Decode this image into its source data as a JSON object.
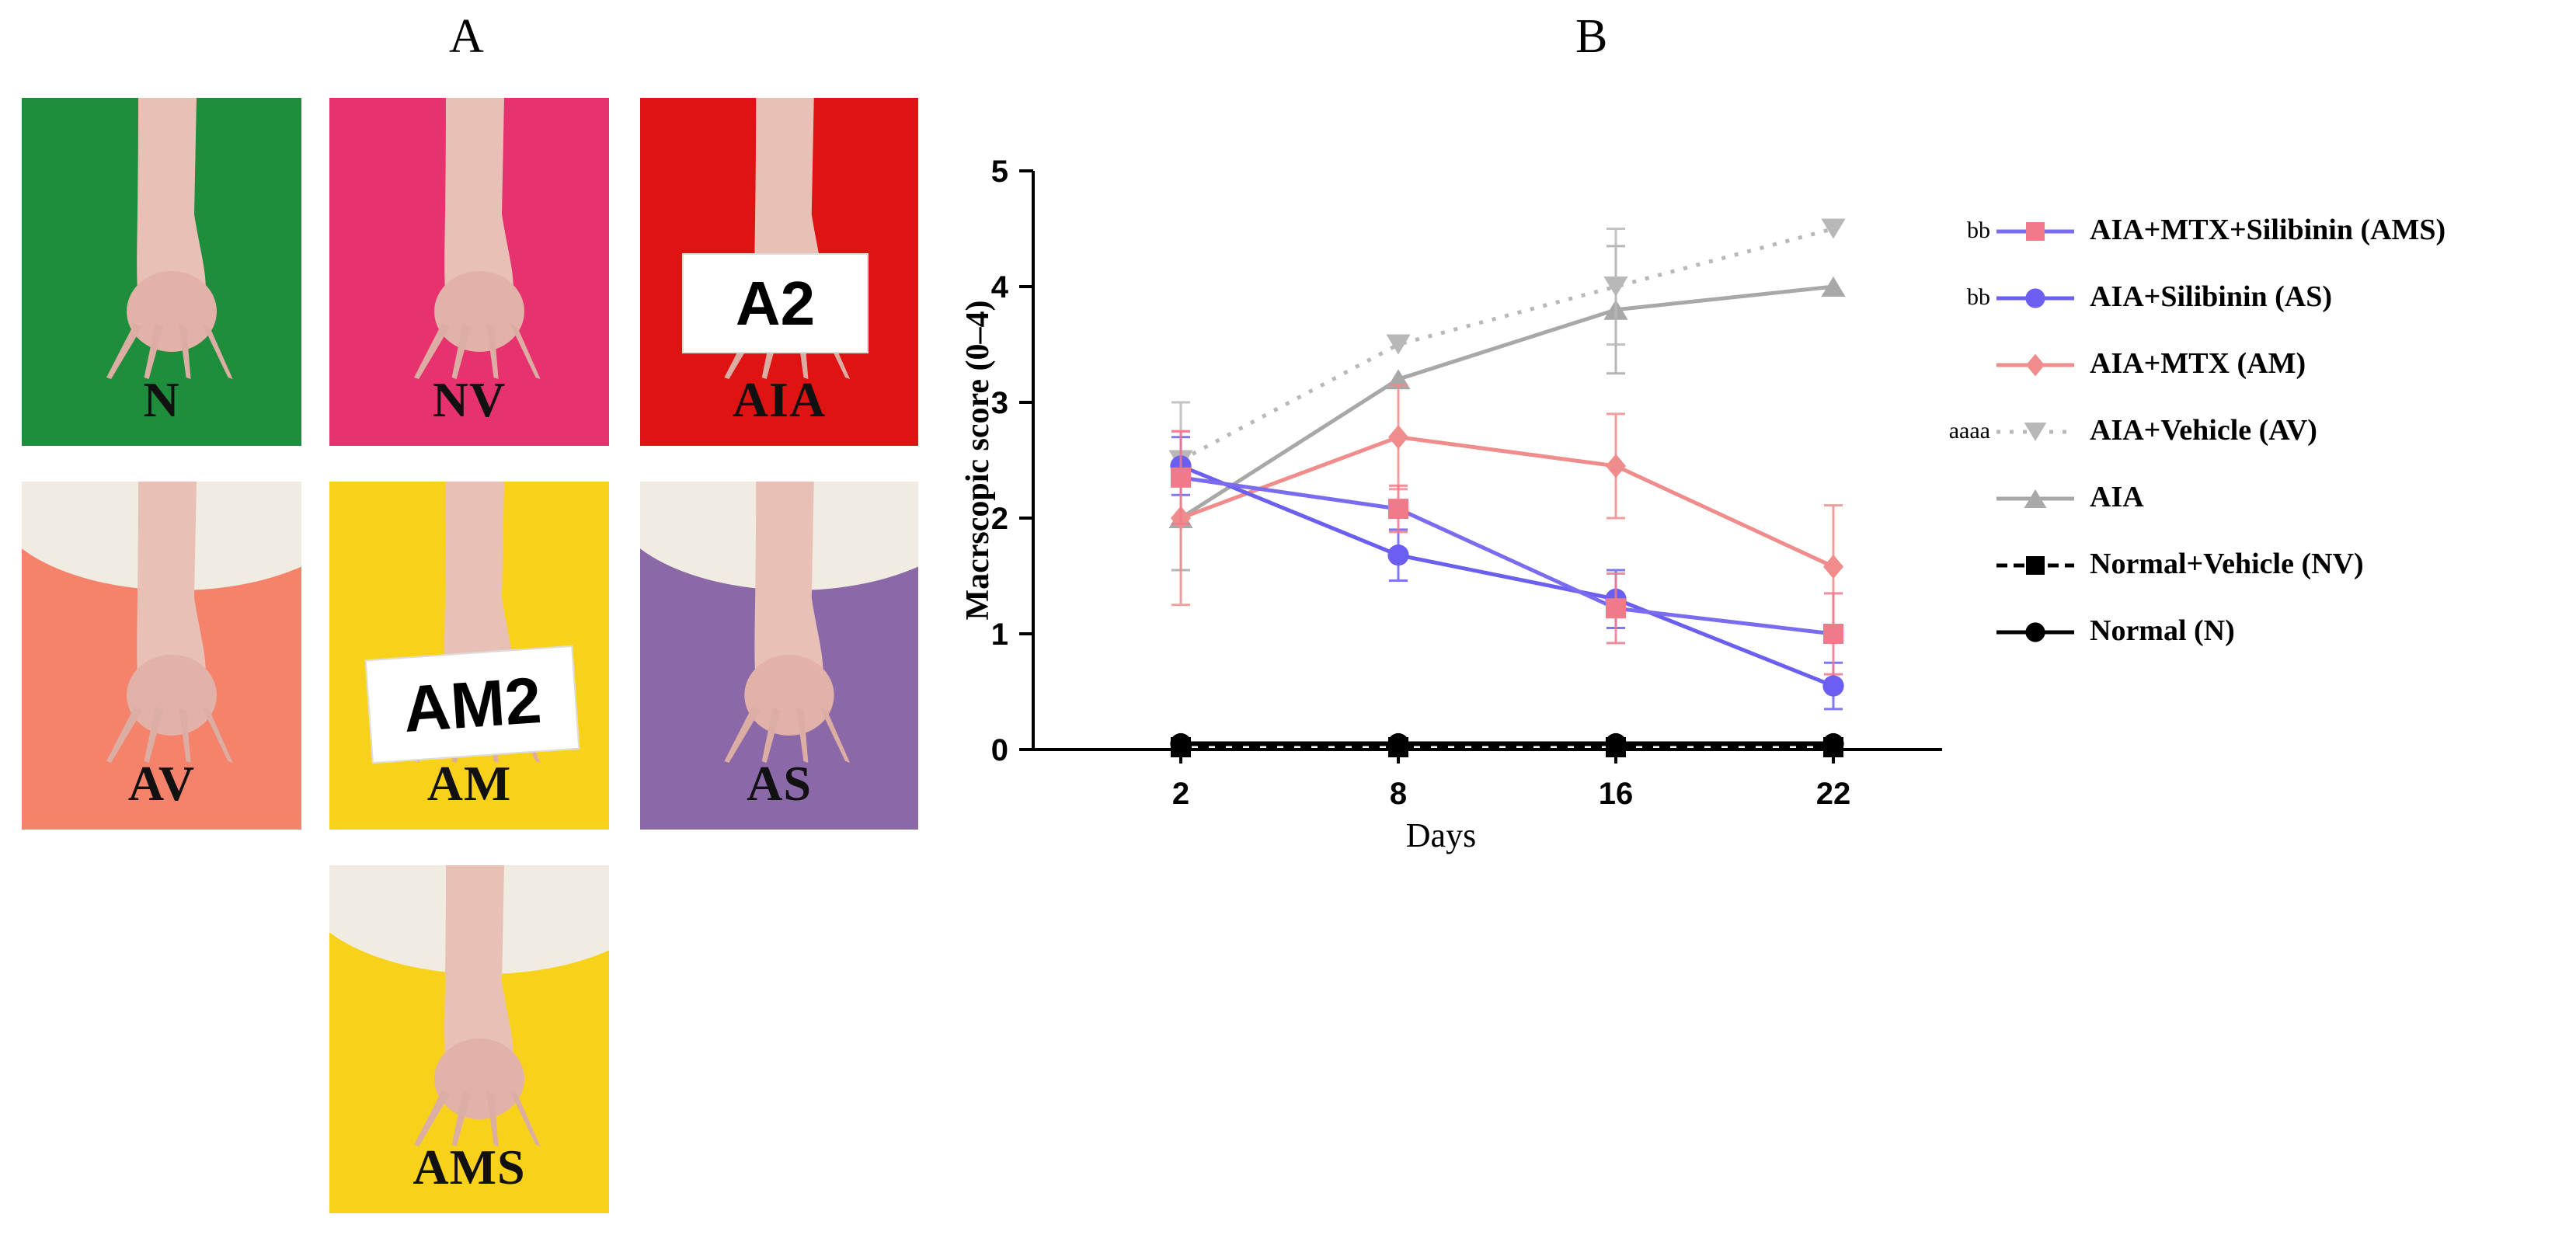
{
  "figure": {
    "panel_a_label": "A",
    "panel_b_label": "B"
  },
  "photos": [
    {
      "label": "N",
      "bg": "#1f8e3c"
    },
    {
      "label": "NV",
      "bg": "#e8316f"
    },
    {
      "label": "AIA",
      "bg": "#e01313",
      "card_text": "A2"
    },
    {
      "label": "AV",
      "bg": "#f5826a"
    },
    {
      "label": "AM",
      "bg": "#f8d21a",
      "card_text": "AM2"
    },
    {
      "label": "AS",
      "bg": "#8b68a8"
    },
    {
      "label": "AMS",
      "bg": "#f8d21a"
    }
  ],
  "chart_data": {
    "type": "line",
    "xlabel": "Days",
    "ylabel": "Macrscopic score (0–4)",
    "categories": [
      "2",
      "8",
      "16",
      "22"
    ],
    "ylim": [
      0,
      5
    ],
    "yticks": [
      "0",
      "1",
      "2",
      "3",
      "4",
      "5"
    ],
    "grid": false,
    "legend_position": "right",
    "series": [
      {
        "name": "AIA+MTX+Silibinin (AMS)",
        "prefix": "bb",
        "color": "#7a6cf0",
        "marker_color": "#f07a8a",
        "marker": "square",
        "dash": "solid",
        "values": [
          2.35,
          2.08,
          1.22,
          1.0
        ],
        "err": [
          0.4,
          0.2,
          0.3,
          0.35
        ]
      },
      {
        "name": "AIA+Silibinin (AS)",
        "prefix": "bb",
        "color": "#6a5ff0",
        "marker_color": "#6a5ff0",
        "marker": "circle",
        "dash": "solid",
        "values": [
          2.45,
          1.68,
          1.3,
          0.55
        ],
        "err": [
          0.25,
          0.22,
          0.25,
          0.2
        ]
      },
      {
        "name": "AIA+MTX (AM)",
        "prefix": "",
        "color": "#f08c8c",
        "marker_color": "#f08c8c",
        "marker": "diamond",
        "dash": "solid",
        "values": [
          2.0,
          2.7,
          2.45,
          1.58
        ],
        "err": [
          0.75,
          0.45,
          0.45,
          0.53
        ]
      },
      {
        "name": "AIA+Vehicle (AV)",
        "prefix": "aaaa",
        "color": "#b8b8b8",
        "marker_color": "#b8b8b8",
        "marker": "triangle-down",
        "dash": "dot",
        "values": [
          2.5,
          3.5,
          4.0,
          4.5
        ],
        "err": [
          0.5,
          0.0,
          0.5,
          0.0
        ]
      },
      {
        "name": "AIA",
        "prefix": "",
        "color": "#a8a8a8",
        "marker_color": "#a8a8a8",
        "marker": "triangle-up",
        "dash": "solid",
        "values": [
          2.0,
          3.2,
          3.8,
          4.0
        ],
        "err": [
          0.45,
          0.0,
          0.55,
          0.0
        ]
      },
      {
        "name": "Normal+Vehicle (NV)",
        "prefix": "",
        "color": "#000000",
        "marker_color": "#000000",
        "marker": "square",
        "dash": "dash",
        "values": [
          0.02,
          0.02,
          0.02,
          0.02
        ],
        "err": [
          0,
          0,
          0,
          0
        ]
      },
      {
        "name": "Normal (N)",
        "prefix": "",
        "color": "#000000",
        "marker_color": "#000000",
        "marker": "circle",
        "dash": "solid",
        "values": [
          0.05,
          0.05,
          0.05,
          0.05
        ],
        "err": [
          0,
          0,
          0,
          0
        ]
      }
    ]
  }
}
